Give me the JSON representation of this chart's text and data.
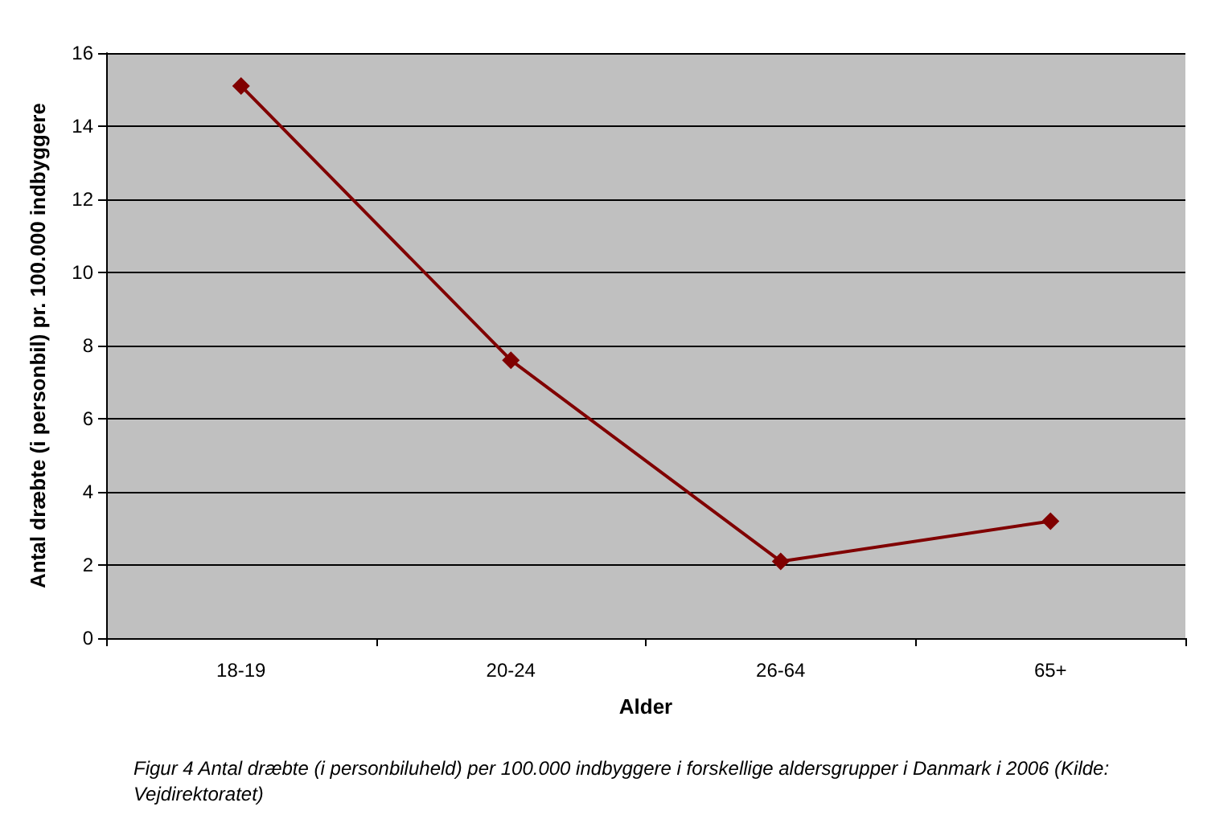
{
  "chart_data": {
    "type": "line",
    "categories": [
      "18-19",
      "20-24",
      "26-64",
      "65+"
    ],
    "series": [
      {
        "color": "#800000",
        "values": [
          15.1,
          7.6,
          2.1,
          3.2
        ]
      }
    ],
    "xlabel": "Alder",
    "ylabel": "Antal dræbte (i personbil) pr. 100.000 indbyggere",
    "ylim": [
      0,
      16
    ],
    "yticks": [
      0,
      2,
      4,
      6,
      8,
      10,
      12,
      14,
      16
    ],
    "grid": "y",
    "marker": "diamond",
    "line_style": "solid",
    "annotations": [
      "Figur 4 Antal dræbte (i personbiluheld) per 100.000 indbyggere i forskellige aldersgrupper i Danmark i 2006 (Kilde: Vejdirektoratet)"
    ]
  }
}
